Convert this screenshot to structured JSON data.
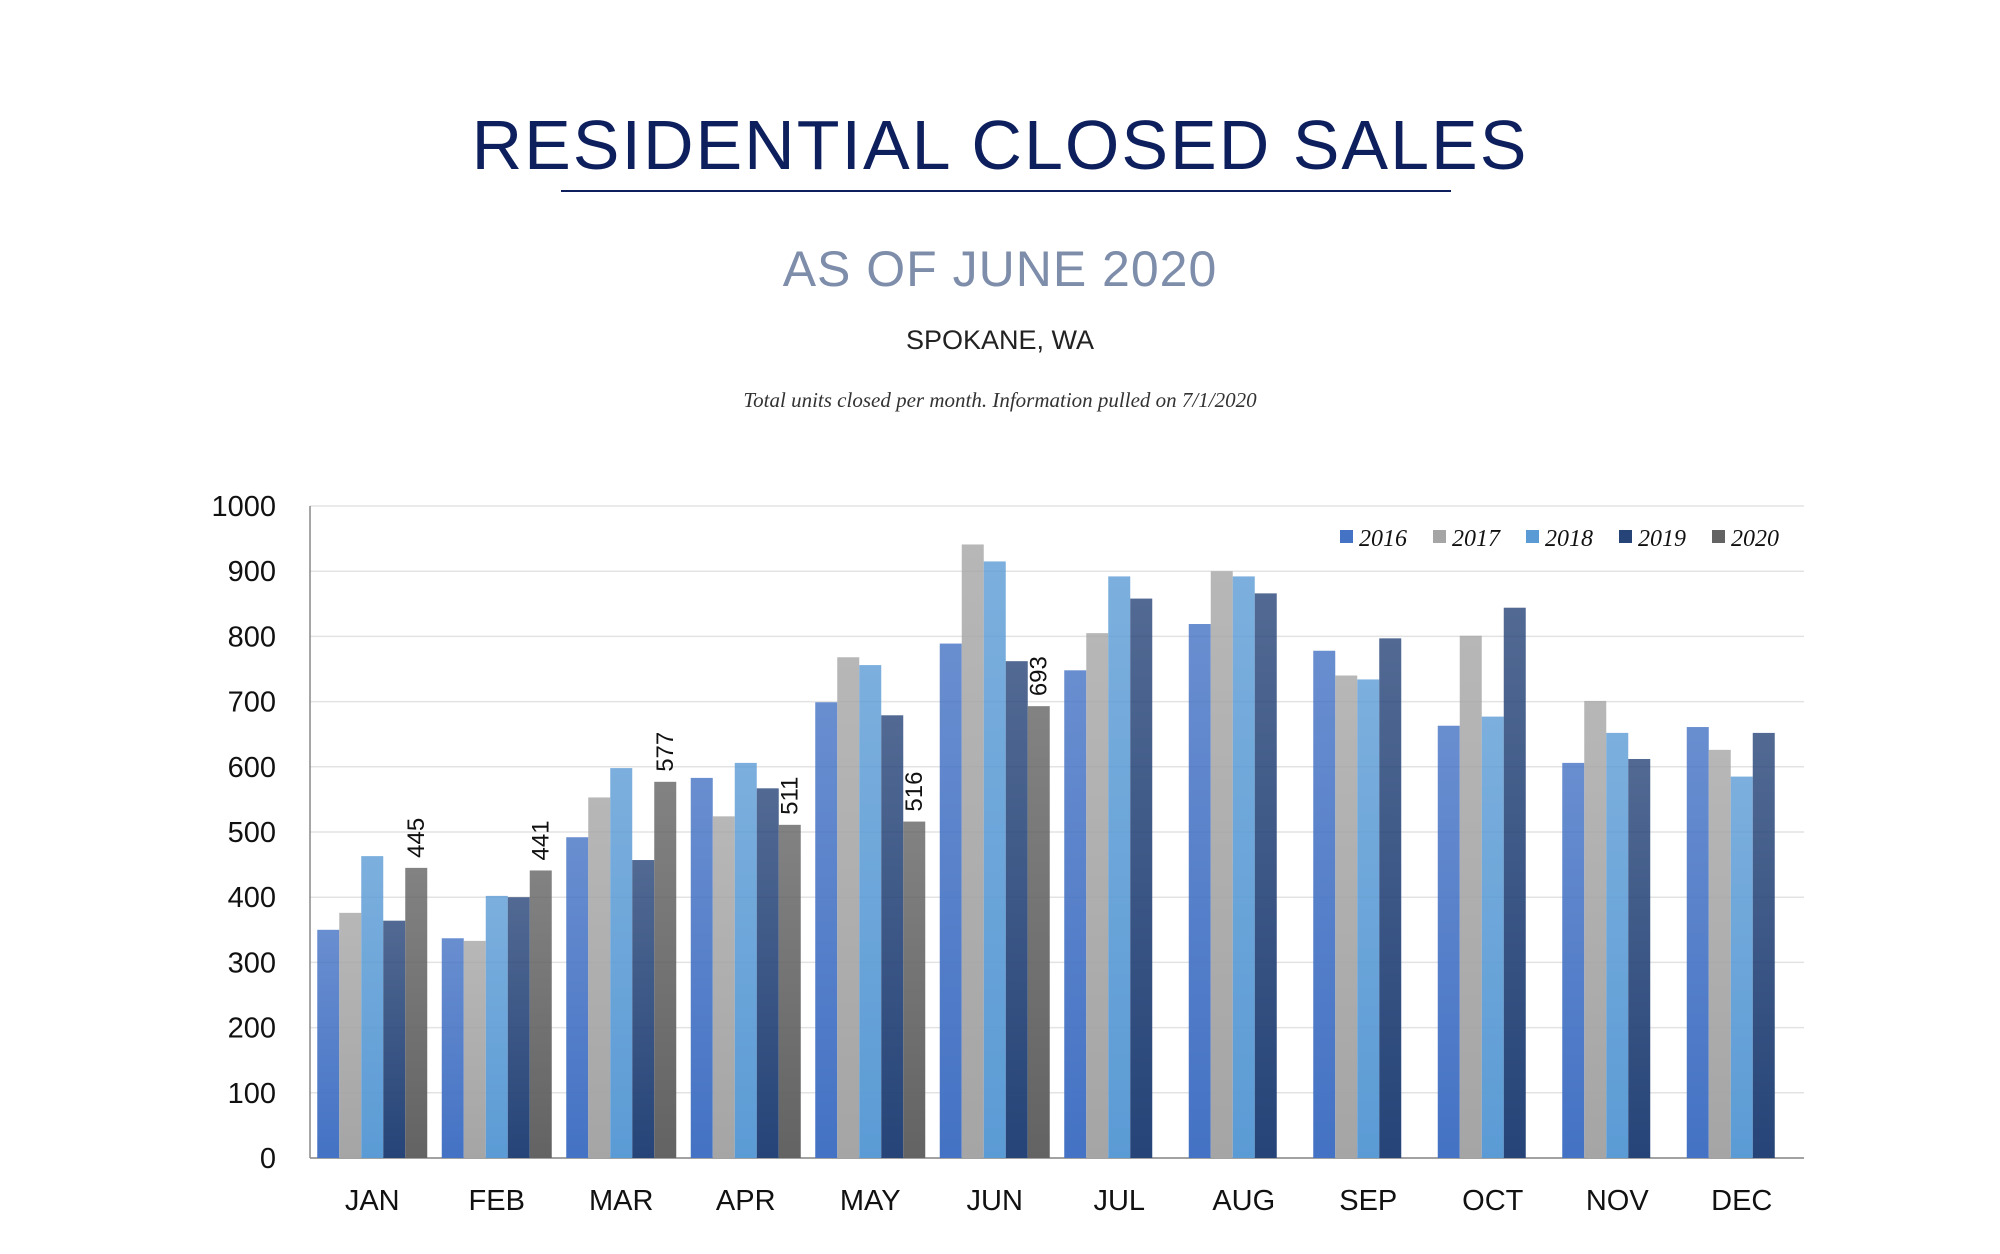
{
  "header": {
    "title": "RESIDENTIAL CLOSED SALES",
    "subtitle": "AS OF JUNE 2020",
    "location": "SPOKANE, WA",
    "note": "Total units closed per month.  Information pulled on 7/1/2020"
  },
  "chart_data": {
    "type": "bar",
    "title": "RESIDENTIAL CLOSED SALES",
    "xlabel": "",
    "ylabel": "",
    "ylim": [
      0,
      1000
    ],
    "yticks": [
      0,
      100,
      200,
      300,
      400,
      500,
      600,
      700,
      800,
      900,
      1000
    ],
    "grid": true,
    "legend_position": "top-right",
    "categories": [
      "JAN",
      "FEB",
      "MAR",
      "APR",
      "MAY",
      "JUN",
      "JUL",
      "AUG",
      "SEP",
      "OCT",
      "NOV",
      "DEC"
    ],
    "series": [
      {
        "name": "2016",
        "color": "#4472c4",
        "values": [
          350,
          337,
          492,
          583,
          699,
          789,
          748,
          819,
          778,
          663,
          606,
          661
        ]
      },
      {
        "name": "2017",
        "color": "#a5a5a5",
        "values": [
          376,
          333,
          553,
          524,
          768,
          941,
          805,
          900,
          740,
          801,
          701,
          626
        ]
      },
      {
        "name": "2018",
        "color": "#5b9bd5",
        "values": [
          463,
          402,
          598,
          606,
          756,
          915,
          892,
          892,
          734,
          677,
          652,
          585
        ]
      },
      {
        "name": "2019",
        "color": "#264478",
        "values": [
          364,
          400,
          457,
          567,
          679,
          762,
          858,
          866,
          797,
          844,
          612,
          652
        ]
      },
      {
        "name": "2020",
        "color": "#636363",
        "values": [
          445,
          441,
          577,
          511,
          516,
          693,
          null,
          null,
          null,
          null,
          null,
          null
        ],
        "data_labels": true
      }
    ]
  }
}
